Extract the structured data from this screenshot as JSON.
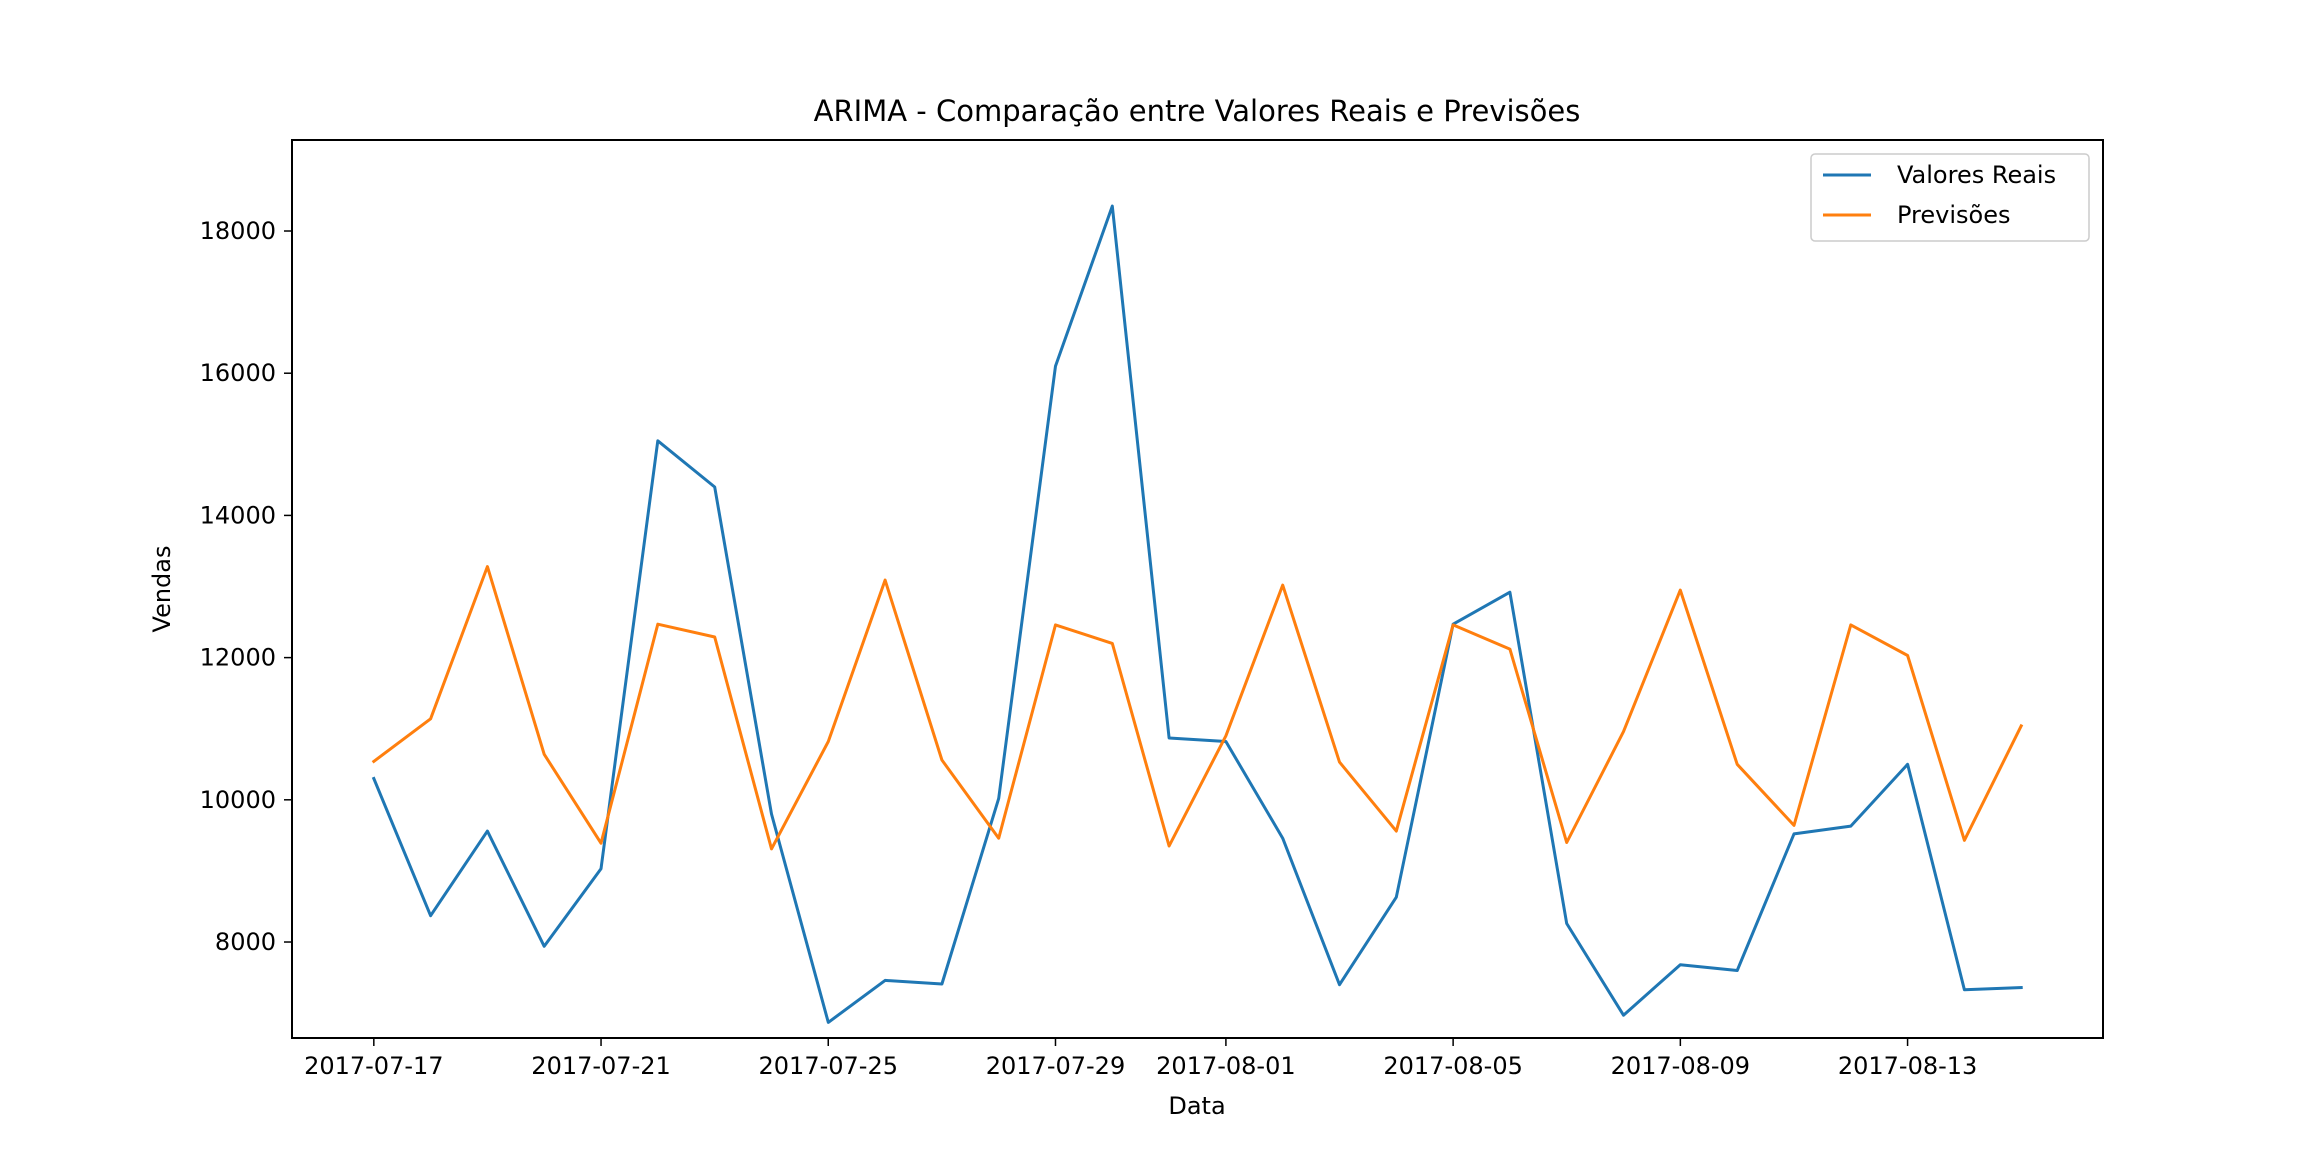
{
  "chart_data": {
    "type": "line",
    "title": "ARIMA - Comparação entre Valores Reais e Previsões",
    "xlabel": "Data",
    "ylabel": "Vendas",
    "x": [
      "2017-07-17",
      "2017-07-18",
      "2017-07-19",
      "2017-07-20",
      "2017-07-21",
      "2017-07-22",
      "2017-07-23",
      "2017-07-24",
      "2017-07-25",
      "2017-07-26",
      "2017-07-27",
      "2017-07-28",
      "2017-07-29",
      "2017-07-30",
      "2017-07-31",
      "2017-08-01",
      "2017-08-02",
      "2017-08-03",
      "2017-08-04",
      "2017-08-05",
      "2017-08-06",
      "2017-08-07",
      "2017-08-08",
      "2017-08-09",
      "2017-08-10",
      "2017-08-11",
      "2017-08-12",
      "2017-08-13",
      "2017-08-14",
      "2017-08-15"
    ],
    "xticks": [
      "2017-07-17",
      "2017-07-21",
      "2017-07-25",
      "2017-07-29",
      "2017-08-01",
      "2017-08-05",
      "2017-08-09",
      "2017-08-13"
    ],
    "yticks": [
      8000,
      10000,
      12000,
      14000,
      16000,
      18000
    ],
    "ylim": [
      6650,
      19280
    ],
    "xlim": [
      "2017-07-15 13:26",
      "2017-08-16 10:34"
    ],
    "grid": false,
    "legend_position": "top-right",
    "series": [
      {
        "name": "Valores Reais",
        "color": "#1f77b4",
        "values": [
          10300,
          8370,
          9560,
          7940,
          9030,
          15050,
          14400,
          9800,
          6870,
          7460,
          7410,
          10020,
          16100,
          18350,
          10870,
          10820,
          9460,
          7400,
          8630,
          12470,
          12920,
          8260,
          6970,
          7680,
          7600,
          9520,
          9630,
          10500,
          7330,
          7360
        ]
      },
      {
        "name": "Previsões",
        "color": "#ff7f0e",
        "values": [
          10540,
          11140,
          13280,
          10640,
          9390,
          12470,
          12290,
          9310,
          10820,
          13090,
          10560,
          9460,
          12460,
          12200,
          9350,
          10900,
          13020,
          10530,
          9560,
          12460,
          12120,
          9400,
          10960,
          12950,
          10500,
          9640,
          12460,
          12030,
          9430,
          11040
        ]
      }
    ]
  }
}
